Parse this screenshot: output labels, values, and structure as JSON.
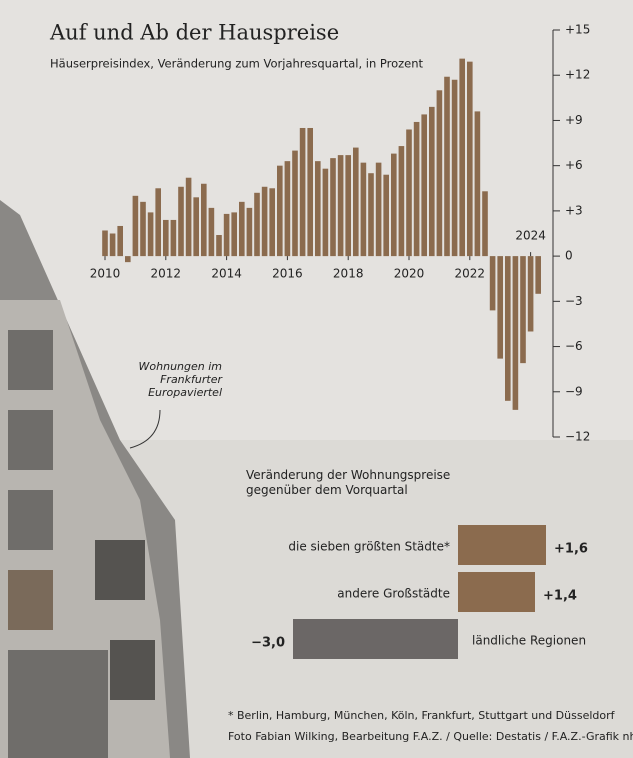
{
  "chart_data": [
    {
      "type": "bar",
      "title": "Auf und Ab der Hauspreise",
      "subtitle": "Häuserpreisindex, Veränderung zum Vorjahresquartal, in Prozent",
      "categories": [
        "2010",
        null,
        null,
        null,
        null,
        null,
        null,
        null,
        "2012",
        null,
        null,
        null,
        null,
        null,
        null,
        null,
        "2014",
        null,
        null,
        null,
        null,
        null,
        null,
        null,
        "2016",
        null,
        null,
        null,
        null,
        null,
        null,
        null,
        "2018",
        null,
        null,
        null,
        null,
        null,
        null,
        null,
        "2020",
        null,
        null,
        null,
        null,
        null,
        null,
        null,
        "2022",
        null,
        null,
        null,
        null,
        null,
        null,
        null,
        "2024",
        null
      ],
      "values": [
        1.7,
        1.5,
        2.0,
        -0.4,
        4.0,
        3.6,
        2.9,
        4.5,
        2.4,
        2.4,
        4.6,
        5.2,
        3.9,
        4.8,
        3.2,
        1.4,
        2.8,
        2.9,
        3.6,
        3.2,
        4.2,
        4.6,
        4.5,
        6.0,
        6.3,
        7.0,
        8.5,
        8.5,
        6.3,
        5.8,
        6.5,
        6.7,
        6.7,
        7.2,
        6.2,
        5.5,
        6.2,
        5.4,
        6.8,
        7.3,
        8.4,
        8.9,
        9.4,
        9.9,
        11.0,
        11.9,
        11.7,
        13.1,
        12.9,
        9.6,
        4.3,
        -3.6,
        -6.8,
        -9.6,
        -10.2,
        -7.1,
        -5.0,
        -2.5
      ],
      "color": "#8b6b4e",
      "ylim": [
        -12,
        15
      ],
      "yticks": [
        {
          "value": -12,
          "label": "−12"
        },
        {
          "value": -9,
          "label": "−9"
        },
        {
          "value": -6,
          "label": "−6"
        },
        {
          "value": -3,
          "label": "−3"
        },
        0,
        {
          "value": 3,
          "label": "+3"
        },
        {
          "value": 6,
          "label": "+6"
        },
        {
          "value": 9,
          "label": "+9"
        },
        {
          "value": 12,
          "label": "+12"
        },
        {
          "value": 15,
          "label": "+15"
        }
      ],
      "annotation": "Wohnungen im Frankfurter Europaviertel"
    },
    {
      "type": "hbar",
      "title": "Veränderung der Wohnungspreise gegenüber dem Vorquartal",
      "categories": [
        "die sieben größten Städte*",
        "andere Großstädte",
        "ländliche Regionen"
      ],
      "values": [
        1.6,
        1.4,
        -3.0
      ],
      "value_labels": [
        "+1,6",
        "+1,4",
        "−3,0"
      ],
      "colors": [
        "#8b6b4e",
        "#8b6b4e",
        "#6b6766"
      ]
    }
  ],
  "footnote": "* Berlin, Hamburg, München, Köln, Frankfurt, Stuttgart und Düsseldorf",
  "credit": "Foto Fabian Wilking, Bearbeitung F.A.Z. / Quelle: Destatis / F.A.Z.-Grafik nhe."
}
